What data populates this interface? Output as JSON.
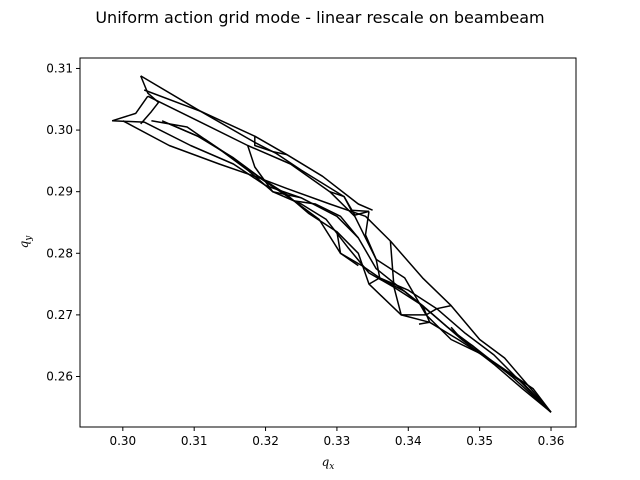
{
  "chart_data": {
    "type": "line",
    "title": "Uniform action grid mode - linear rescale on beambeam",
    "xlabel": "q_x",
    "ylabel": "q_y",
    "xlim": [
      0.294,
      0.3635
    ],
    "ylim": [
      0.2518,
      0.3117
    ],
    "xticks": [
      0.3,
      0.31,
      0.32,
      0.33,
      0.34,
      0.35,
      0.36
    ],
    "yticks": [
      0.26,
      0.27,
      0.28,
      0.29,
      0.3,
      0.31
    ],
    "xtick_labels": [
      "0.30",
      "0.31",
      "0.32",
      "0.33",
      "0.34",
      "0.35",
      "0.36"
    ],
    "ytick_labels": [
      "0.26",
      "0.27",
      "0.28",
      "0.29",
      "0.30",
      "0.31"
    ],
    "grid": false,
    "line_color": "#000000",
    "series": [
      {
        "points": [
          [
            0.3025,
            0.3088
          ],
          [
            0.3105,
            0.3033
          ],
          [
            0.3185,
            0.298
          ],
          [
            0.3215,
            0.2962
          ],
          [
            0.325,
            0.2935
          ],
          [
            0.331,
            0.2892
          ],
          [
            0.3325,
            0.2862
          ],
          [
            0.3345,
            0.2868
          ]
        ]
      },
      {
        "points": [
          [
            0.303,
            0.3065
          ],
          [
            0.311,
            0.303
          ],
          [
            0.3185,
            0.299
          ],
          [
            0.323,
            0.296
          ],
          [
            0.328,
            0.2925
          ],
          [
            0.333,
            0.288
          ],
          [
            0.335,
            0.287
          ]
        ]
      },
      {
        "points": [
          [
            0.3035,
            0.3055
          ],
          [
            0.3105,
            0.3015
          ],
          [
            0.3175,
            0.2975
          ],
          [
            0.3235,
            0.2945
          ],
          [
            0.329,
            0.29
          ],
          [
            0.3325,
            0.286
          ],
          [
            0.3355,
            0.279
          ],
          [
            0.3395,
            0.276
          ],
          [
            0.3425,
            0.27
          ],
          [
            0.346,
            0.266
          ],
          [
            0.3505,
            0.2635
          ],
          [
            0.3575,
            0.258
          ],
          [
            0.36,
            0.2542
          ]
        ]
      },
      {
        "points": [
          [
            0.3,
            0.3015
          ],
          [
            0.3065,
            0.2975
          ],
          [
            0.3135,
            0.2945
          ],
          [
            0.3185,
            0.2925
          ],
          [
            0.323,
            0.2905
          ],
          [
            0.329,
            0.288
          ],
          [
            0.334,
            0.286
          ],
          [
            0.3375,
            0.282
          ],
          [
            0.342,
            0.276
          ],
          [
            0.346,
            0.2715
          ],
          [
            0.35,
            0.266
          ],
          [
            0.3535,
            0.263
          ],
          [
            0.36,
            0.2542
          ]
        ]
      },
      {
        "points": [
          [
            0.2985,
            0.3015
          ],
          [
            0.303,
            0.3013
          ],
          [
            0.3095,
            0.2975
          ],
          [
            0.3155,
            0.2945
          ],
          [
            0.32,
            0.291
          ],
          [
            0.325,
            0.289
          ],
          [
            0.33,
            0.286
          ],
          [
            0.333,
            0.2825
          ],
          [
            0.3355,
            0.2775
          ],
          [
            0.3395,
            0.2738
          ],
          [
            0.3435,
            0.27
          ],
          [
            0.3475,
            0.266
          ],
          [
            0.352,
            0.262
          ],
          [
            0.356,
            0.258
          ],
          [
            0.36,
            0.2542
          ]
        ]
      },
      {
        "points": [
          [
            0.304,
            0.3015
          ],
          [
            0.309,
            0.3005
          ],
          [
            0.314,
            0.2965
          ],
          [
            0.3175,
            0.2935
          ],
          [
            0.321,
            0.29
          ],
          [
            0.325,
            0.288
          ],
          [
            0.3285,
            0.2855
          ],
          [
            0.3315,
            0.281
          ],
          [
            0.3345,
            0.2768
          ],
          [
            0.338,
            0.2745
          ],
          [
            0.342,
            0.2715
          ],
          [
            0.3455,
            0.268
          ],
          [
            0.349,
            0.265
          ],
          [
            0.3545,
            0.26
          ],
          [
            0.36,
            0.2542
          ]
        ]
      },
      {
        "points": [
          [
            0.3055,
            0.3015
          ],
          [
            0.3105,
            0.299
          ],
          [
            0.3155,
            0.2955
          ],
          [
            0.319,
            0.2925
          ],
          [
            0.323,
            0.2895
          ],
          [
            0.326,
            0.2865
          ],
          [
            0.33,
            0.2835
          ],
          [
            0.333,
            0.28
          ],
          [
            0.3345,
            0.275
          ],
          [
            0.339,
            0.27
          ],
          [
            0.343,
            0.2688
          ],
          [
            0.347,
            0.266
          ],
          [
            0.351,
            0.263
          ],
          [
            0.356,
            0.259
          ],
          [
            0.36,
            0.2542
          ]
        ]
      },
      {
        "points": [
          [
            0.3065,
            0.301
          ],
          [
            0.3115,
            0.2985
          ],
          [
            0.316,
            0.295
          ],
          [
            0.3195,
            0.292
          ],
          [
            0.324,
            0.2885
          ],
          [
            0.3275,
            0.2855
          ],
          [
            0.3305,
            0.28
          ],
          [
            0.3335,
            0.278
          ],
          [
            0.336,
            0.276
          ],
          [
            0.34,
            0.274
          ],
          [
            0.344,
            0.271
          ],
          [
            0.348,
            0.267
          ],
          [
            0.352,
            0.2635
          ],
          [
            0.36,
            0.2542
          ]
        ]
      },
      {
        "points": [
          [
            0.3025,
            0.301
          ],
          [
            0.304,
            0.303
          ],
          [
            0.305,
            0.3045
          ],
          [
            0.3035,
            0.306
          ],
          [
            0.3025,
            0.3088
          ]
        ]
      },
      {
        "points": [
          [
            0.2985,
            0.3015
          ],
          [
            0.3018,
            0.3027
          ],
          [
            0.3035,
            0.3055
          ]
        ]
      },
      {
        "points": [
          [
            0.3185,
            0.299
          ],
          [
            0.3185,
            0.2975
          ],
          [
            0.321,
            0.2965
          ],
          [
            0.323,
            0.296
          ]
        ]
      },
      {
        "points": [
          [
            0.3175,
            0.2975
          ],
          [
            0.3185,
            0.294
          ],
          [
            0.321,
            0.29
          ],
          [
            0.323,
            0.2895
          ],
          [
            0.325,
            0.289
          ]
        ]
      },
      {
        "points": [
          [
            0.324,
            0.2885
          ],
          [
            0.327,
            0.288
          ],
          [
            0.3305,
            0.286
          ],
          [
            0.333,
            0.2825
          ]
        ]
      },
      {
        "points": [
          [
            0.329,
            0.29
          ],
          [
            0.331,
            0.2892
          ],
          [
            0.332,
            0.287
          ],
          [
            0.3345,
            0.2868
          ]
        ]
      },
      {
        "points": [
          [
            0.3345,
            0.2868
          ],
          [
            0.334,
            0.283
          ],
          [
            0.3355,
            0.279
          ],
          [
            0.336,
            0.276
          ],
          [
            0.3345,
            0.275
          ]
        ]
      },
      {
        "points": [
          [
            0.33,
            0.2835
          ],
          [
            0.3305,
            0.28
          ],
          [
            0.333,
            0.278
          ]
        ]
      },
      {
        "points": [
          [
            0.336,
            0.276
          ],
          [
            0.3395,
            0.2738
          ],
          [
            0.342,
            0.2715
          ],
          [
            0.343,
            0.2688
          ],
          [
            0.3415,
            0.2685
          ]
        ]
      },
      {
        "points": [
          [
            0.3375,
            0.282
          ],
          [
            0.338,
            0.2745
          ],
          [
            0.339,
            0.27
          ],
          [
            0.3425,
            0.27
          ],
          [
            0.344,
            0.271
          ],
          [
            0.346,
            0.2715
          ]
        ]
      },
      {
        "points": [
          [
            0.346,
            0.268
          ],
          [
            0.3475,
            0.266
          ],
          [
            0.349,
            0.265
          ],
          [
            0.3505,
            0.2635
          ],
          [
            0.352,
            0.262
          ]
        ]
      }
    ]
  }
}
